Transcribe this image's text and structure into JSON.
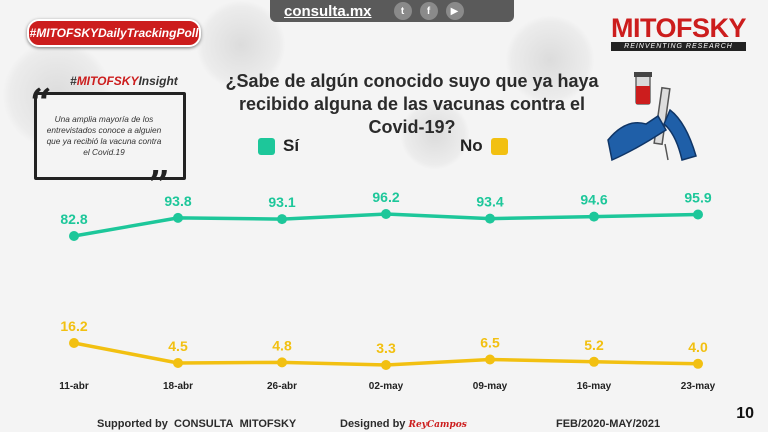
{
  "topbar": {
    "site": "consulta.mx",
    "icons": [
      "twitter-icon",
      "facebook-icon",
      "youtube-icon"
    ]
  },
  "hashtag": "#MITOFSKYDailyTrackingPoll",
  "logo": {
    "name": "MITOFSKY",
    "tagline": "REINVENTING RESEARCH"
  },
  "insight": {
    "tag_prefix": "#",
    "tag_brand": "MITOFSKY",
    "tag_suffix": "Insight",
    "text": "Una amplia mayoría de los entrevistados conoce a alguien que ya recibió la vacuna contra el Covid.19"
  },
  "colors": {
    "si": "#1dc79a",
    "no": "#f2c011",
    "brand_red": "#cc1d1d"
  },
  "chart_data": {
    "type": "line",
    "title": "¿Sabe de algún conocido suyo que ya haya recibido alguna de las vacunas contra el Covid-19?",
    "categories": [
      "11-abr",
      "18-abr",
      "26-abr",
      "02-may",
      "09-may",
      "16-may",
      "23-may"
    ],
    "series": [
      {
        "name": "Sí",
        "values": [
          82.8,
          93.8,
          93.1,
          96.2,
          93.4,
          94.6,
          95.9
        ],
        "labels": [
          "82.8",
          "93.8",
          "93.1",
          "96.2",
          "93.4",
          "94.6",
          "95.9"
        ]
      },
      {
        "name": "No",
        "values": [
          16.2,
          4.5,
          4.8,
          3.3,
          6.5,
          5.2,
          4.0
        ],
        "labels": [
          "16.2",
          "4.5",
          "4.8",
          "3.3",
          "6.5",
          "5.2",
          "4.0"
        ]
      }
    ],
    "xlabel": "",
    "ylabel": "",
    "ylim": [
      0,
      100
    ],
    "grid": false
  },
  "footer": {
    "supported": "Supported by",
    "consulta": "CONSULTA",
    "mitofsky": "MITOFSKY",
    "designed": "Designed by",
    "designer": "ReyCampos",
    "period": "FEB/2020-MAY/2021",
    "page": "10"
  }
}
